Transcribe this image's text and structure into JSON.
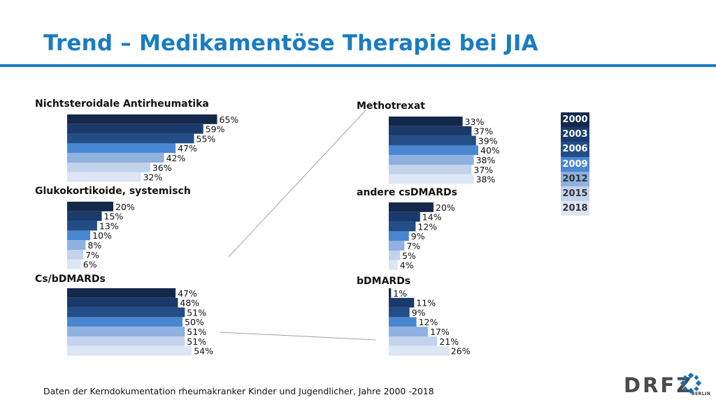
{
  "title": "Trend – Medikamentöse Therapie bei JIA",
  "footnote": "Daten der Kerndokumentation rheumakranker Kinder und Jugendlicher, Jahre 2000 -2018",
  "logo": {
    "text": "DRFZ",
    "sub": "BERLIN"
  },
  "colors": [
    "#14284a",
    "#1b3a6c",
    "#234d86",
    "#4a87d2",
    "#8fb1df",
    "#c3d3ec",
    "#dde6f4"
  ],
  "legend": [
    {
      "label": "2000",
      "color": "#14284a",
      "text_color": "#ffffff"
    },
    {
      "label": "2003",
      "color": "#1b3a6c",
      "text_color": "#ffffff"
    },
    {
      "label": "2006",
      "color": "#234d86",
      "text_color": "#ffffff"
    },
    {
      "label": "2009",
      "color": "#4a87d2",
      "text_color": "#ffffff"
    },
    {
      "label": "2012",
      "color": "#8fb1df",
      "text_color": "#333333"
    },
    {
      "label": "2015",
      "color": "#c3d3ec",
      "text_color": "#333333"
    },
    {
      "label": "2018",
      "color": "#dde6f4",
      "text_color": "#333333"
    }
  ],
  "chart_data": [
    {
      "type": "bar",
      "orientation": "horizontal",
      "title": "Nichtsteroidale Antirheumatika",
      "categories": [
        "2000",
        "2003",
        "2006",
        "2009",
        "2012",
        "2015",
        "2018"
      ],
      "values": [
        65,
        59,
        55,
        47,
        42,
        36,
        32
      ],
      "labels": [
        "65%",
        "59%",
        "55%",
        "47%",
        "42%",
        "36%",
        "32%"
      ],
      "unit": "%"
    },
    {
      "type": "bar",
      "orientation": "horizontal",
      "title": "Glukokortikoide, systemisch",
      "categories": [
        "2000",
        "2003",
        "2006",
        "2009",
        "2012",
        "2015",
        "2018"
      ],
      "values": [
        20,
        15,
        13,
        10,
        8,
        7,
        6
      ],
      "labels": [
        "20%",
        "15%",
        "13%",
        "10%",
        "8%",
        "7%",
        "6%"
      ],
      "unit": "%"
    },
    {
      "type": "bar",
      "orientation": "horizontal",
      "title": "Cs/bDMARDs",
      "categories": [
        "2000",
        "2003",
        "2006",
        "2009",
        "2012",
        "2015",
        "2018"
      ],
      "values": [
        47,
        48,
        51,
        50,
        51,
        51,
        54
      ],
      "labels": [
        "47%",
        "48%",
        "51%",
        "50%",
        "51%",
        "51%",
        "54%"
      ],
      "unit": "%"
    },
    {
      "type": "bar",
      "orientation": "horizontal",
      "title": "Methotrexat",
      "categories": [
        "2000",
        "2003",
        "2006",
        "2009",
        "2012",
        "2015",
        "2018"
      ],
      "values": [
        33,
        37,
        39,
        40,
        38,
        37,
        38
      ],
      "labels": [
        "33%",
        "37%",
        "39%",
        "40%",
        "38%",
        "37%",
        "38%"
      ],
      "unit": "%"
    },
    {
      "type": "bar",
      "orientation": "horizontal",
      "title": "andere csDMARDs",
      "categories": [
        "2000",
        "2003",
        "2006",
        "2009",
        "2012",
        "2015",
        "2018"
      ],
      "values": [
        20,
        14,
        12,
        9,
        7,
        5,
        4
      ],
      "labels": [
        "20%",
        "14%",
        "12%",
        "9%",
        "7%",
        "5%",
        "4%"
      ],
      "unit": "%"
    },
    {
      "type": "bar",
      "orientation": "horizontal",
      "title": "bDMARDs",
      "categories": [
        "2000",
        "2003",
        "2006",
        "2009",
        "2012",
        "2015",
        "2018"
      ],
      "values": [
        1,
        11,
        9,
        12,
        17,
        21,
        26
      ],
      "labels": [
        "1%",
        "11%",
        "9%",
        "12%",
        "17%",
        "21%",
        "26%"
      ],
      "unit": "%"
    }
  ]
}
